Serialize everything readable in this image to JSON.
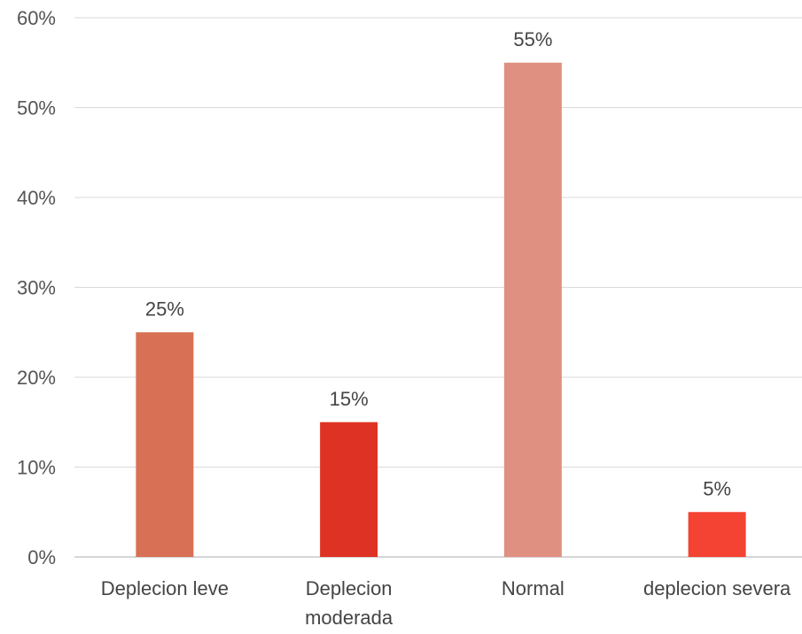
{
  "chart_data": {
    "type": "bar",
    "categories": [
      "Deplecion leve",
      "Deplecion moderada",
      "Normal",
      "deplecion severa"
    ],
    "category_lines": [
      [
        "Deplecion leve"
      ],
      [
        "Deplecion",
        "moderada"
      ],
      [
        "Normal"
      ],
      [
        "deplecion severa"
      ]
    ],
    "values": [
      25,
      15,
      55,
      5
    ],
    "data_labels": [
      "25%",
      "15%",
      "55%",
      "5%"
    ],
    "bar_colors": [
      "#d87055",
      "#de3324",
      "#e09080",
      "#f44333"
    ],
    "ylim": [
      0,
      60
    ],
    "y_ticks": [
      0,
      10,
      20,
      30,
      40,
      50,
      60
    ],
    "y_tick_labels": [
      "0%",
      "10%",
      "20%",
      "30%",
      "40%",
      "50%",
      "60%"
    ],
    "grid": true,
    "legend": "none"
  }
}
